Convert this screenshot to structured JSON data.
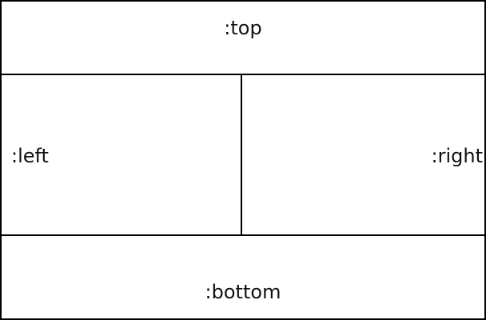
{
  "diagram": {
    "regions": {
      "top": {
        "label": ":top"
      },
      "left": {
        "label": ":left"
      },
      "right": {
        "label": ":right"
      },
      "bottom": {
        "label": ":bottom"
      }
    },
    "colors": {
      "border": "#000000",
      "background": "#ffffff",
      "text": "#111111"
    }
  }
}
